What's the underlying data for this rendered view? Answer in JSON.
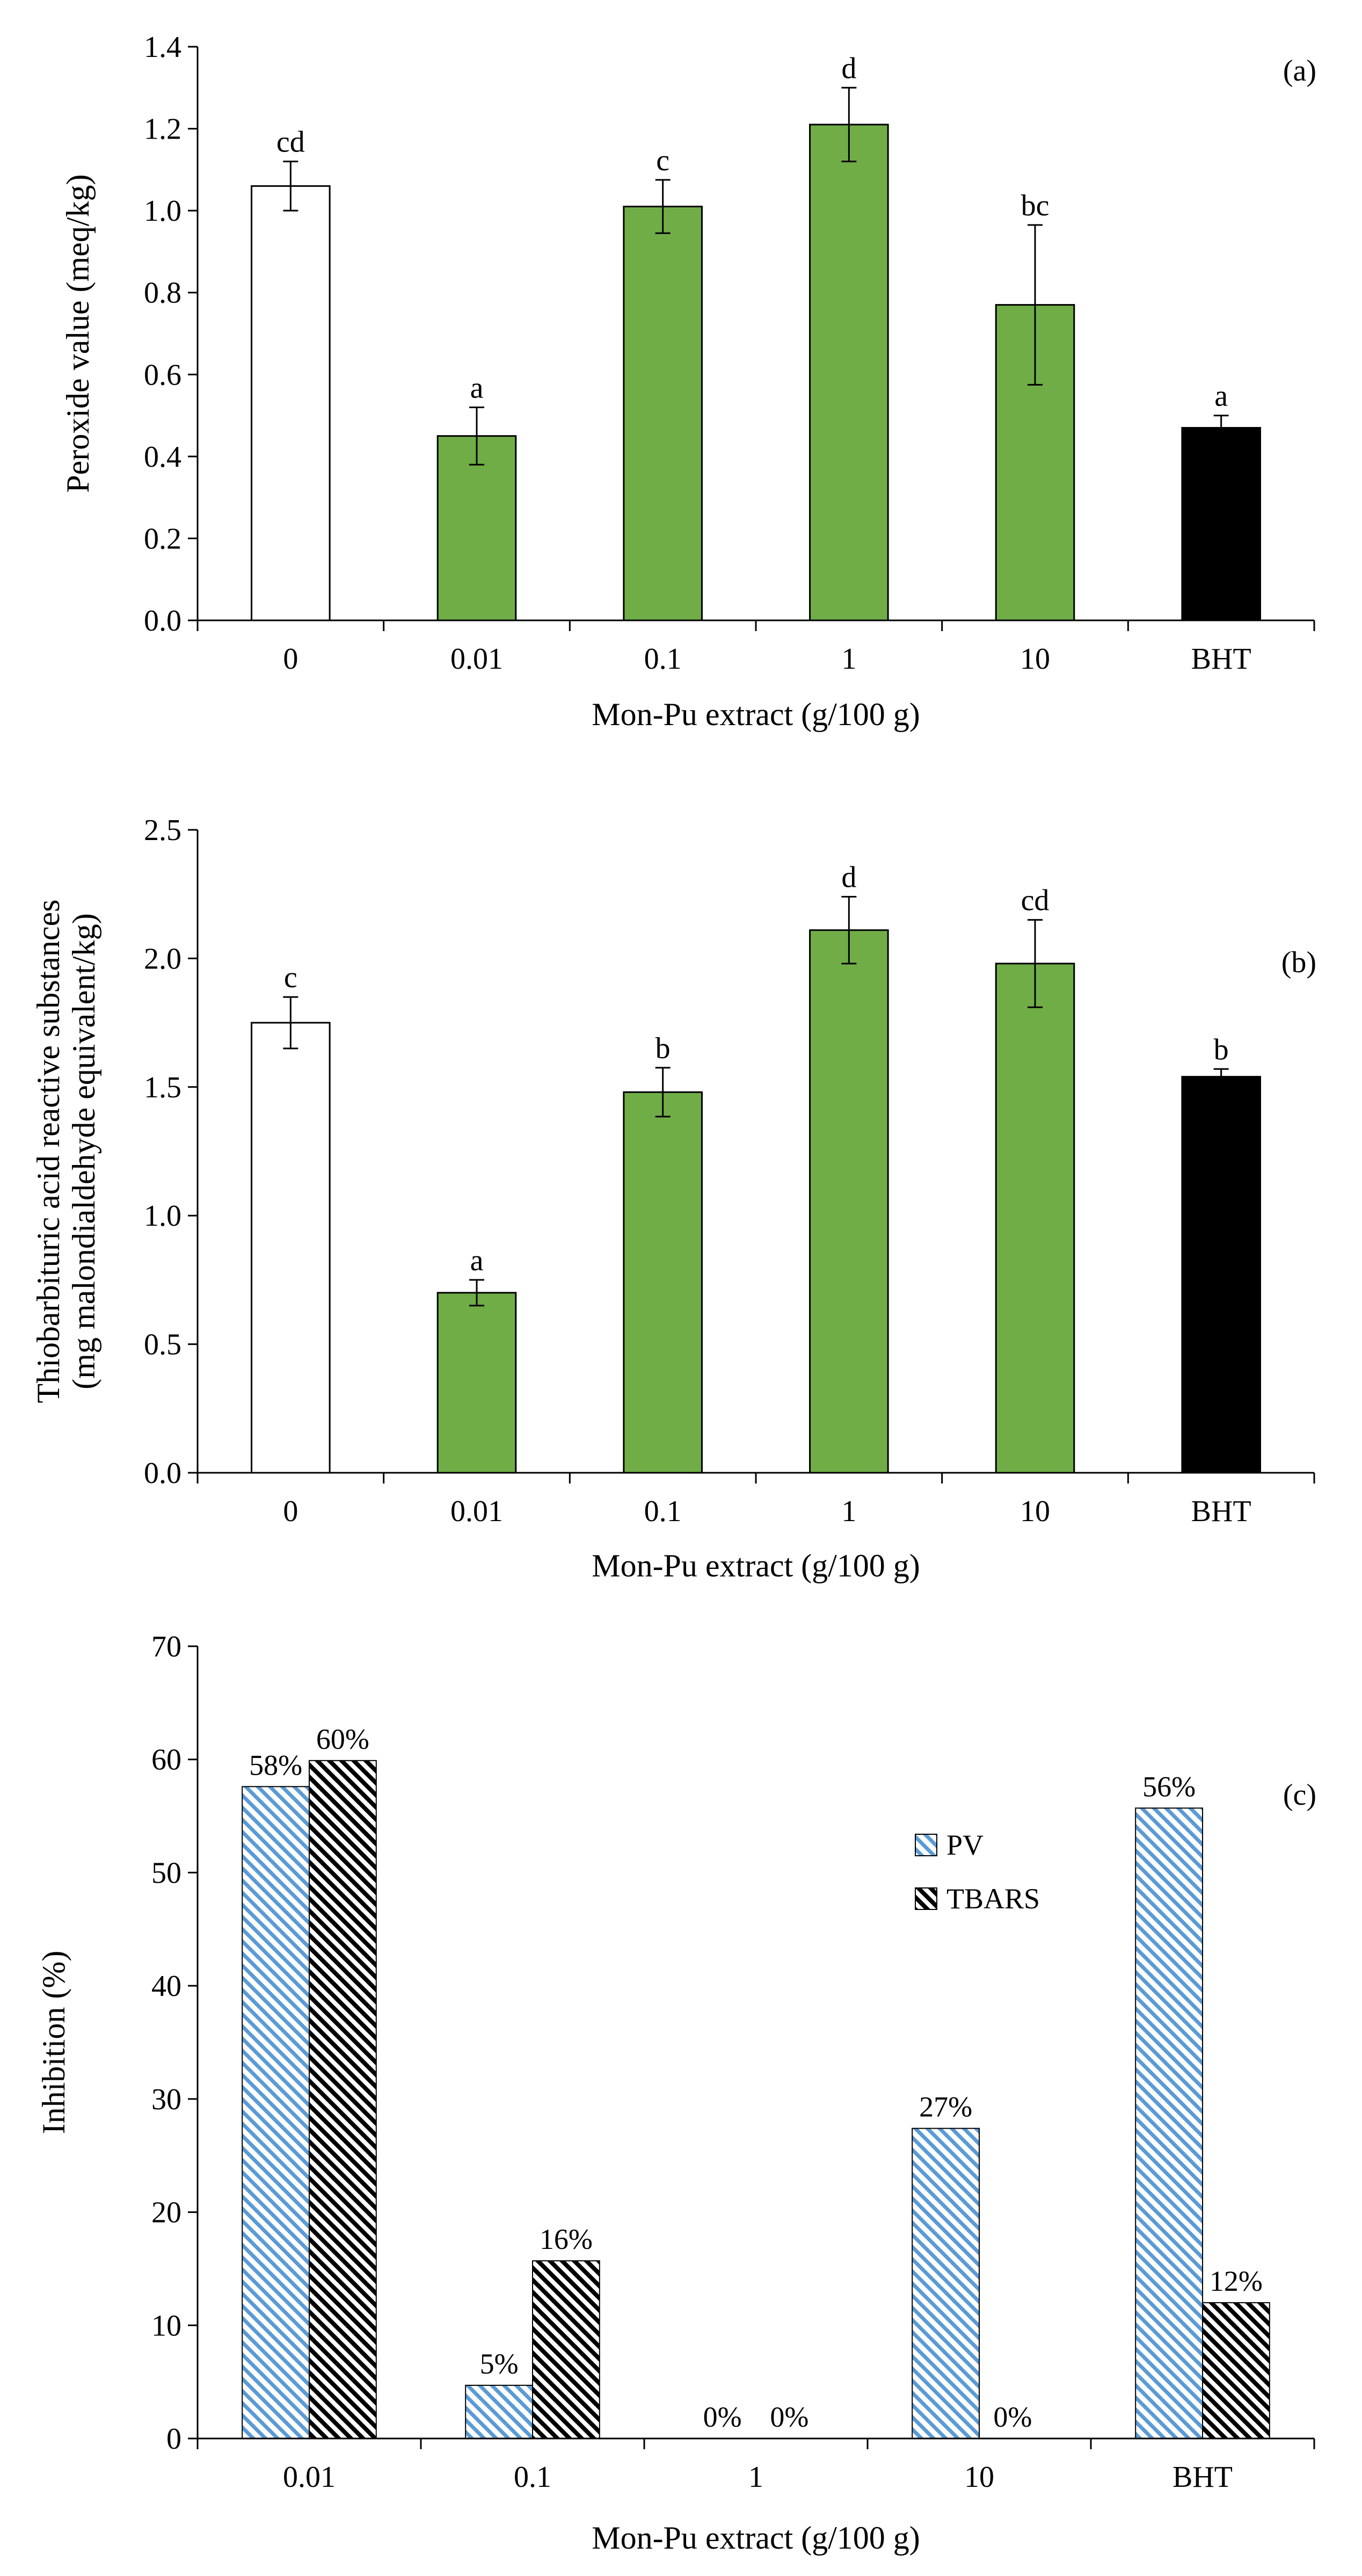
{
  "colors": {
    "control_fill": "#ffffff",
    "extract_fill": "#70ad47",
    "bht_fill": "#000000",
    "pv_hatch": "#5b9bd5",
    "tbars_hatch": "#000000",
    "axis": "#000000"
  },
  "chart_data": [
    {
      "type": "bar",
      "panel_label": "(a)",
      "title": "",
      "xlabel": "Mon-Pu extract (g/100 g)",
      "ylabel": "Peroxide value (meq/kg)",
      "ylim": [
        0,
        1.4
      ],
      "yticks": [
        "0.0",
        "0.2",
        "0.4",
        "0.6",
        "0.8",
        "1.0",
        "1.2",
        "1.4"
      ],
      "grid": false,
      "categories": [
        "0",
        "0.01",
        "0.1",
        "1",
        "10",
        "BHT"
      ],
      "values": [
        1.06,
        0.45,
        1.01,
        1.21,
        0.77,
        0.47
      ],
      "errors": [
        0.06,
        0.07,
        0.065,
        0.09,
        0.195,
        0.03
      ],
      "letters": [
        "cd",
        "a",
        "c",
        "d",
        "bc",
        "a"
      ],
      "bar_colors": [
        "control_fill",
        "extract_fill",
        "extract_fill",
        "extract_fill",
        "extract_fill",
        "bht_fill"
      ]
    },
    {
      "type": "bar",
      "panel_label": "(b)",
      "title": "",
      "xlabel": "Mon-Pu extract (g/100 g)",
      "ylabel": [
        "Thiobarbituric acid reactive substances",
        "(mg malondialdehyde equivalent/kg)"
      ],
      "ylim": [
        0,
        2.5
      ],
      "yticks": [
        "0.0",
        "0.5",
        "1.0",
        "1.5",
        "2.0",
        "2.5"
      ],
      "grid": false,
      "categories": [
        "0",
        "0.01",
        "0.1",
        "1",
        "10",
        "BHT"
      ],
      "values": [
        1.75,
        0.7,
        1.48,
        2.11,
        1.98,
        1.54
      ],
      "errors": [
        0.1,
        0.05,
        0.095,
        0.13,
        0.17,
        0.03
      ],
      "letters": [
        "c",
        "a",
        "b",
        "d",
        "cd",
        "b"
      ],
      "bar_colors": [
        "control_fill",
        "extract_fill",
        "extract_fill",
        "extract_fill",
        "extract_fill",
        "bht_fill"
      ]
    },
    {
      "type": "bar",
      "panel_label": "(c)",
      "title": "",
      "xlabel": "Mon-Pu extract (g/100 g)",
      "ylabel": "Inhibition (%)",
      "ylim": [
        0,
        70
      ],
      "yticks": [
        "0",
        "10",
        "20",
        "30",
        "40",
        "50",
        "60",
        "70"
      ],
      "grid": false,
      "legend_position": "right",
      "categories": [
        "0.01",
        "0.1",
        "1",
        "10",
        "BHT"
      ],
      "series": [
        {
          "name": "PV",
          "values": [
            57.6,
            4.7,
            0,
            27.4,
            55.7
          ],
          "labels": [
            "58%",
            "5%",
            "0%",
            "27%",
            "56%"
          ]
        },
        {
          "name": "TBARS",
          "values": [
            59.9,
            15.7,
            0,
            0,
            12.0
          ],
          "labels": [
            "60%",
            "16%",
            "0%",
            "0%",
            "12%"
          ]
        }
      ]
    }
  ]
}
